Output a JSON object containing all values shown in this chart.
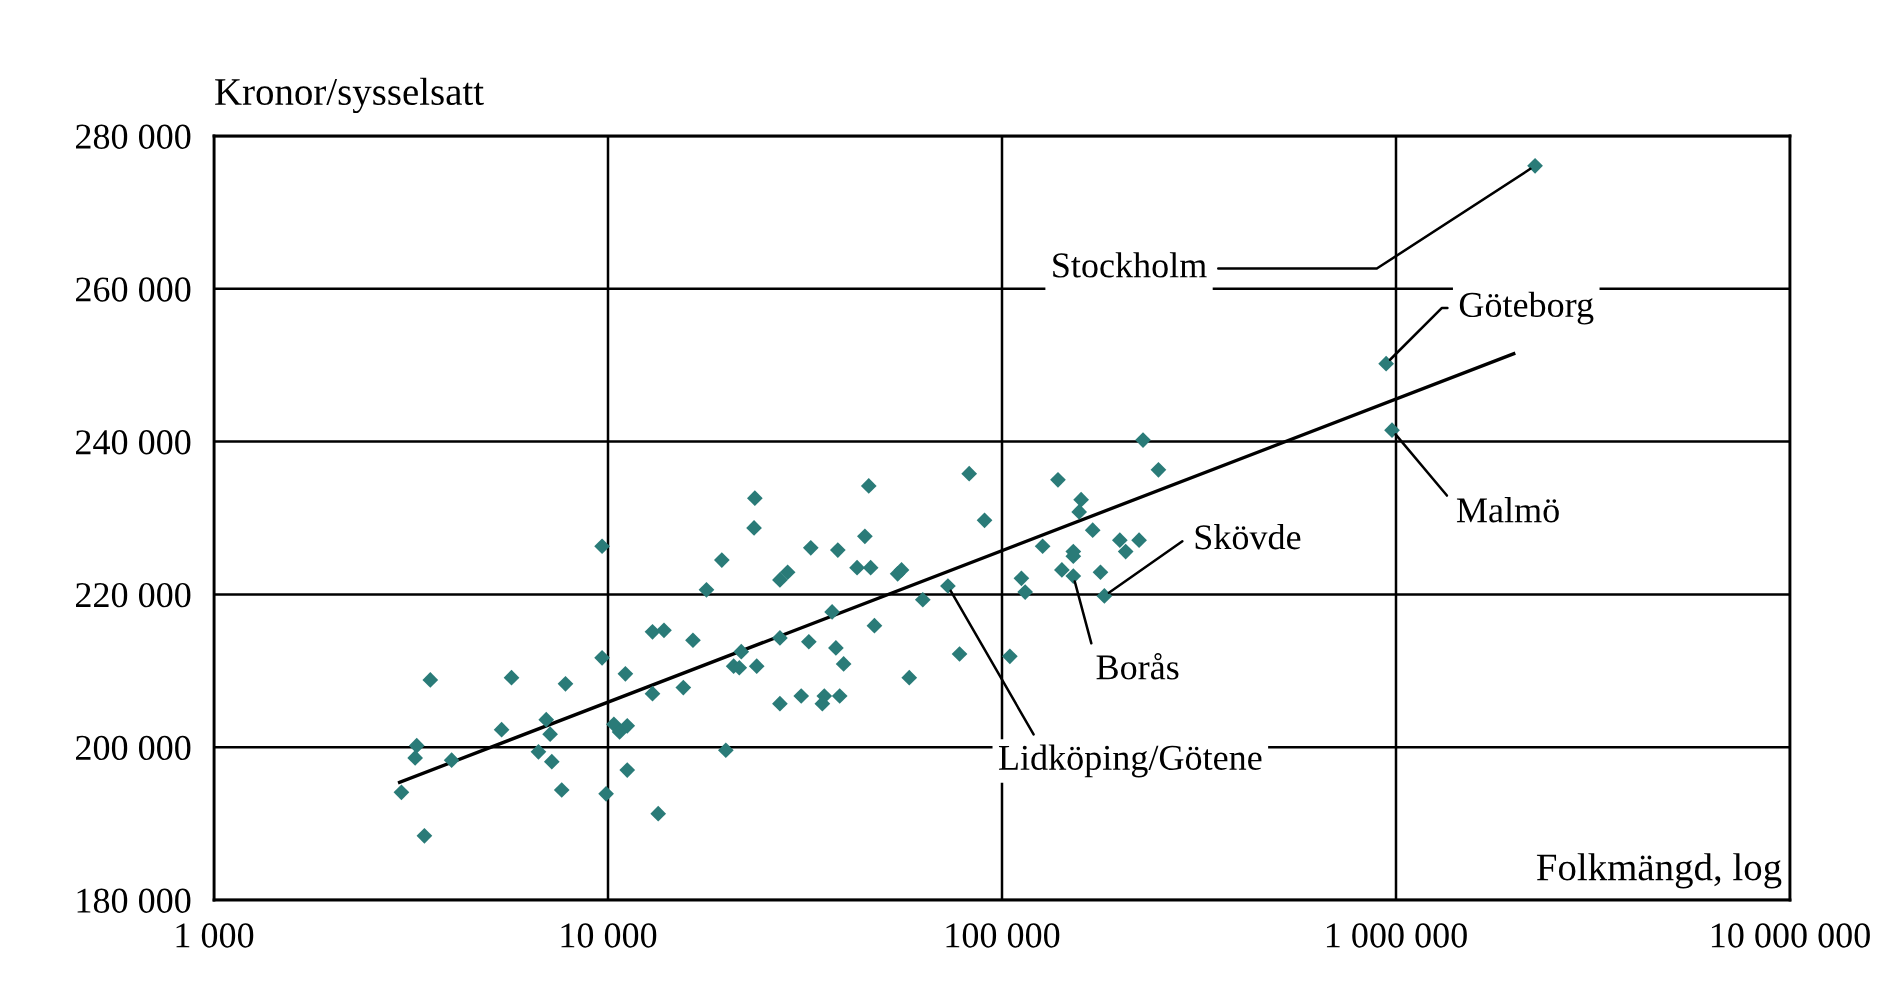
{
  "chart_data": {
    "type": "scatter",
    "ylabel": "Kronor/sysselsatt",
    "xlabel": "Folkmängd, log",
    "log": "x",
    "grid": true,
    "legend": false,
    "xlim": [
      1000,
      10000000
    ],
    "ylim": [
      180000,
      280000
    ],
    "xticks": [
      {
        "value": 1000,
        "label": "1 000"
      },
      {
        "value": 10000,
        "label": "10 000"
      },
      {
        "value": 100000,
        "label": "100 000"
      },
      {
        "value": 1000000,
        "label": "1 000 000"
      },
      {
        "value": 10000000,
        "label": "10 000 000"
      }
    ],
    "yticks": [
      {
        "value": 180000,
        "label": "180 000"
      },
      {
        "value": 200000,
        "label": "200 000"
      },
      {
        "value": 220000,
        "label": "220 000"
      },
      {
        "value": 240000,
        "label": "240 000"
      },
      {
        "value": 260000,
        "label": "260 000"
      },
      {
        "value": 280000,
        "label": "280 000"
      }
    ],
    "series": [
      {
        "marker": "diamond",
        "color": "#2a7b78",
        "x": [
          9660,
          19450,
          17780,
          12970,
          13870,
          16430,
          9660,
          3540,
          5690,
          7800,
          11070,
          12970,
          15530,
          20840,
          21540,
          6970,
          5370,
          7130,
          10350,
          11190,
          10700,
          3270,
          3240,
          4010,
          6660,
          7200,
          19910,
          11190,
          2990,
          7630,
          9890,
          13410,
          3420,
          23590,
          23480,
          45900,
          82550,
          90300,
          44870,
          32710,
          38310,
          28570,
          27310,
          42870,
          46410,
          54340,
          55590,
          72910,
          62950,
          37050,
          47450,
          27310,
          32340,
          37880,
          21790,
          23850,
          39630,
          78020,
          104700,
          58160,
          27310,
          30930,
          35400,
          35000,
          38730,
          138700,
          158800,
          157000,
          169900,
          126800,
          151700,
          151700,
          112000,
          114500,
          141900,
          151700,
          177800,
          181900,
          228000,
          249500,
          199100,
          222800,
          206000,
          2254000,
          944000,
          977000
        ],
        "values": [
          226300,
          224500,
          220600,
          215100,
          215300,
          214000,
          211700,
          208800,
          209100,
          208300,
          209600,
          207000,
          207800,
          210600,
          210400,
          203600,
          202300,
          201700,
          203000,
          202800,
          202000,
          200200,
          198600,
          198300,
          199400,
          198100,
          199600,
          197000,
          194100,
          194400,
          193900,
          191300,
          188400,
          232600,
          228700,
          234200,
          235800,
          229700,
          227600,
          226100,
          225800,
          222900,
          221900,
          223500,
          223500,
          222700,
          223200,
          221100,
          219300,
          217700,
          215900,
          214300,
          213800,
          213000,
          212500,
          210600,
          210900,
          212200,
          211900,
          209100,
          205700,
          206700,
          206700,
          205700,
          206700,
          235000,
          232400,
          230800,
          228400,
          226300,
          225600,
          225000,
          222100,
          220300,
          223200,
          222400,
          222900,
          219800,
          240200,
          236300,
          227100,
          227100,
          225600,
          276100,
          250200,
          241500
        ]
      },
      {
        "type": "line",
        "marker": "none",
        "color": "#000000",
        "x": [
          2958,
          1990000
        ],
        "values": [
          195400,
          251500
        ]
      }
    ],
    "annotations": [
      {
        "text": "Stockholm",
        "x": 2254000,
        "y": 276100
      },
      {
        "text": "Göteborg",
        "x": 944000,
        "y": 250200
      },
      {
        "text": "Malmö",
        "x": 977000,
        "y": 241500
      },
      {
        "text": "Skövde",
        "x": 181900,
        "y": 219800
      },
      {
        "text": "Borås",
        "x": 151700,
        "y": 222400
      },
      {
        "text": "Lidköping/Götene",
        "x": 72910,
        "y": 221100
      }
    ]
  }
}
